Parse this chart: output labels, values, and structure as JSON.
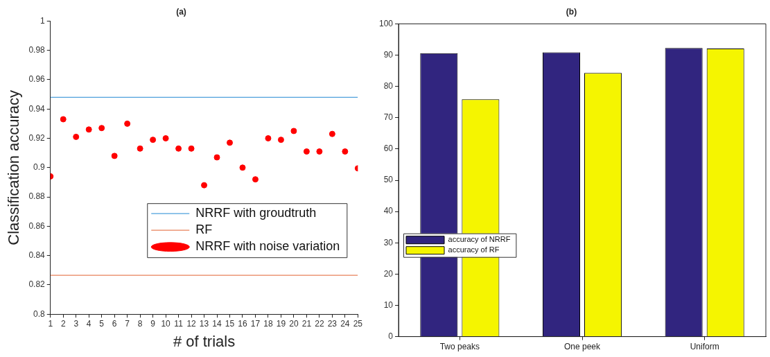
{
  "chart_data": [
    {
      "type": "line",
      "title": "(a)",
      "xlabel": "# of trials",
      "ylabel": "Classification accuracy",
      "x": [
        1,
        2,
        3,
        4,
        5,
        6,
        7,
        8,
        9,
        10,
        11,
        12,
        13,
        14,
        15,
        16,
        17,
        18,
        19,
        20,
        21,
        22,
        23,
        24,
        25
      ],
      "series": [
        {
          "name": "NRRF with groudtruth",
          "type": "line",
          "color": "#4da0dc",
          "values": [
            0.948,
            0.948,
            0.948,
            0.948,
            0.948,
            0.948,
            0.948,
            0.948,
            0.948,
            0.948,
            0.948,
            0.948,
            0.948,
            0.948,
            0.948,
            0.948,
            0.948,
            0.948,
            0.948,
            0.948,
            0.948,
            0.948,
            0.948,
            0.948,
            0.948
          ]
        },
        {
          "name": "RF",
          "type": "line",
          "color": "#e8815a",
          "values": [
            0.8265,
            0.8265,
            0.8265,
            0.8265,
            0.8265,
            0.8265,
            0.8265,
            0.8265,
            0.8265,
            0.8265,
            0.8265,
            0.8265,
            0.8265,
            0.8265,
            0.8265,
            0.8265,
            0.8265,
            0.8265,
            0.8265,
            0.8265,
            0.8265,
            0.8265,
            0.8265,
            0.8265,
            0.8265
          ]
        },
        {
          "name": "NRRF with noise variation",
          "type": "scatter",
          "marker": "circle",
          "color": "#ff0000",
          "values": [
            0.894,
            0.933,
            0.921,
            0.926,
            0.927,
            0.908,
            0.93,
            0.913,
            0.919,
            0.92,
            0.913,
            0.913,
            0.888,
            0.907,
            0.917,
            0.9,
            0.892,
            0.92,
            0.919,
            0.925,
            0.911,
            0.911,
            0.923,
            0.911,
            0.8995
          ]
        }
      ],
      "xlim": [
        1,
        25
      ],
      "xticks": [
        1,
        2,
        3,
        4,
        5,
        6,
        7,
        8,
        9,
        10,
        11,
        12,
        13,
        14,
        15,
        16,
        17,
        18,
        19,
        20,
        21,
        22,
        23,
        24,
        25
      ],
      "ylim": [
        0.8,
        1
      ],
      "yticks": [
        0.8,
        0.82,
        0.84,
        0.86,
        0.88,
        0.9,
        0.92,
        0.94,
        0.96,
        0.98,
        1
      ],
      "legend": "bottom right",
      "grid": false
    },
    {
      "type": "bar",
      "title": "(b)",
      "categories": [
        "Two peaks",
        "One peek",
        "Uniform"
      ],
      "series": [
        {
          "name": "accuracy of NRRF",
          "color": "#31257f",
          "values": [
            90.6,
            90.9,
            92.3
          ]
        },
        {
          "name": "accuracy of RF",
          "color": "#f5f500",
          "values": [
            75.9,
            84.3,
            92.1
          ]
        }
      ],
      "ylim": [
        0,
        100
      ],
      "yticks": [
        0,
        10,
        20,
        30,
        40,
        50,
        60,
        70,
        80,
        90,
        100
      ],
      "legend": "left",
      "grid": false
    }
  ]
}
